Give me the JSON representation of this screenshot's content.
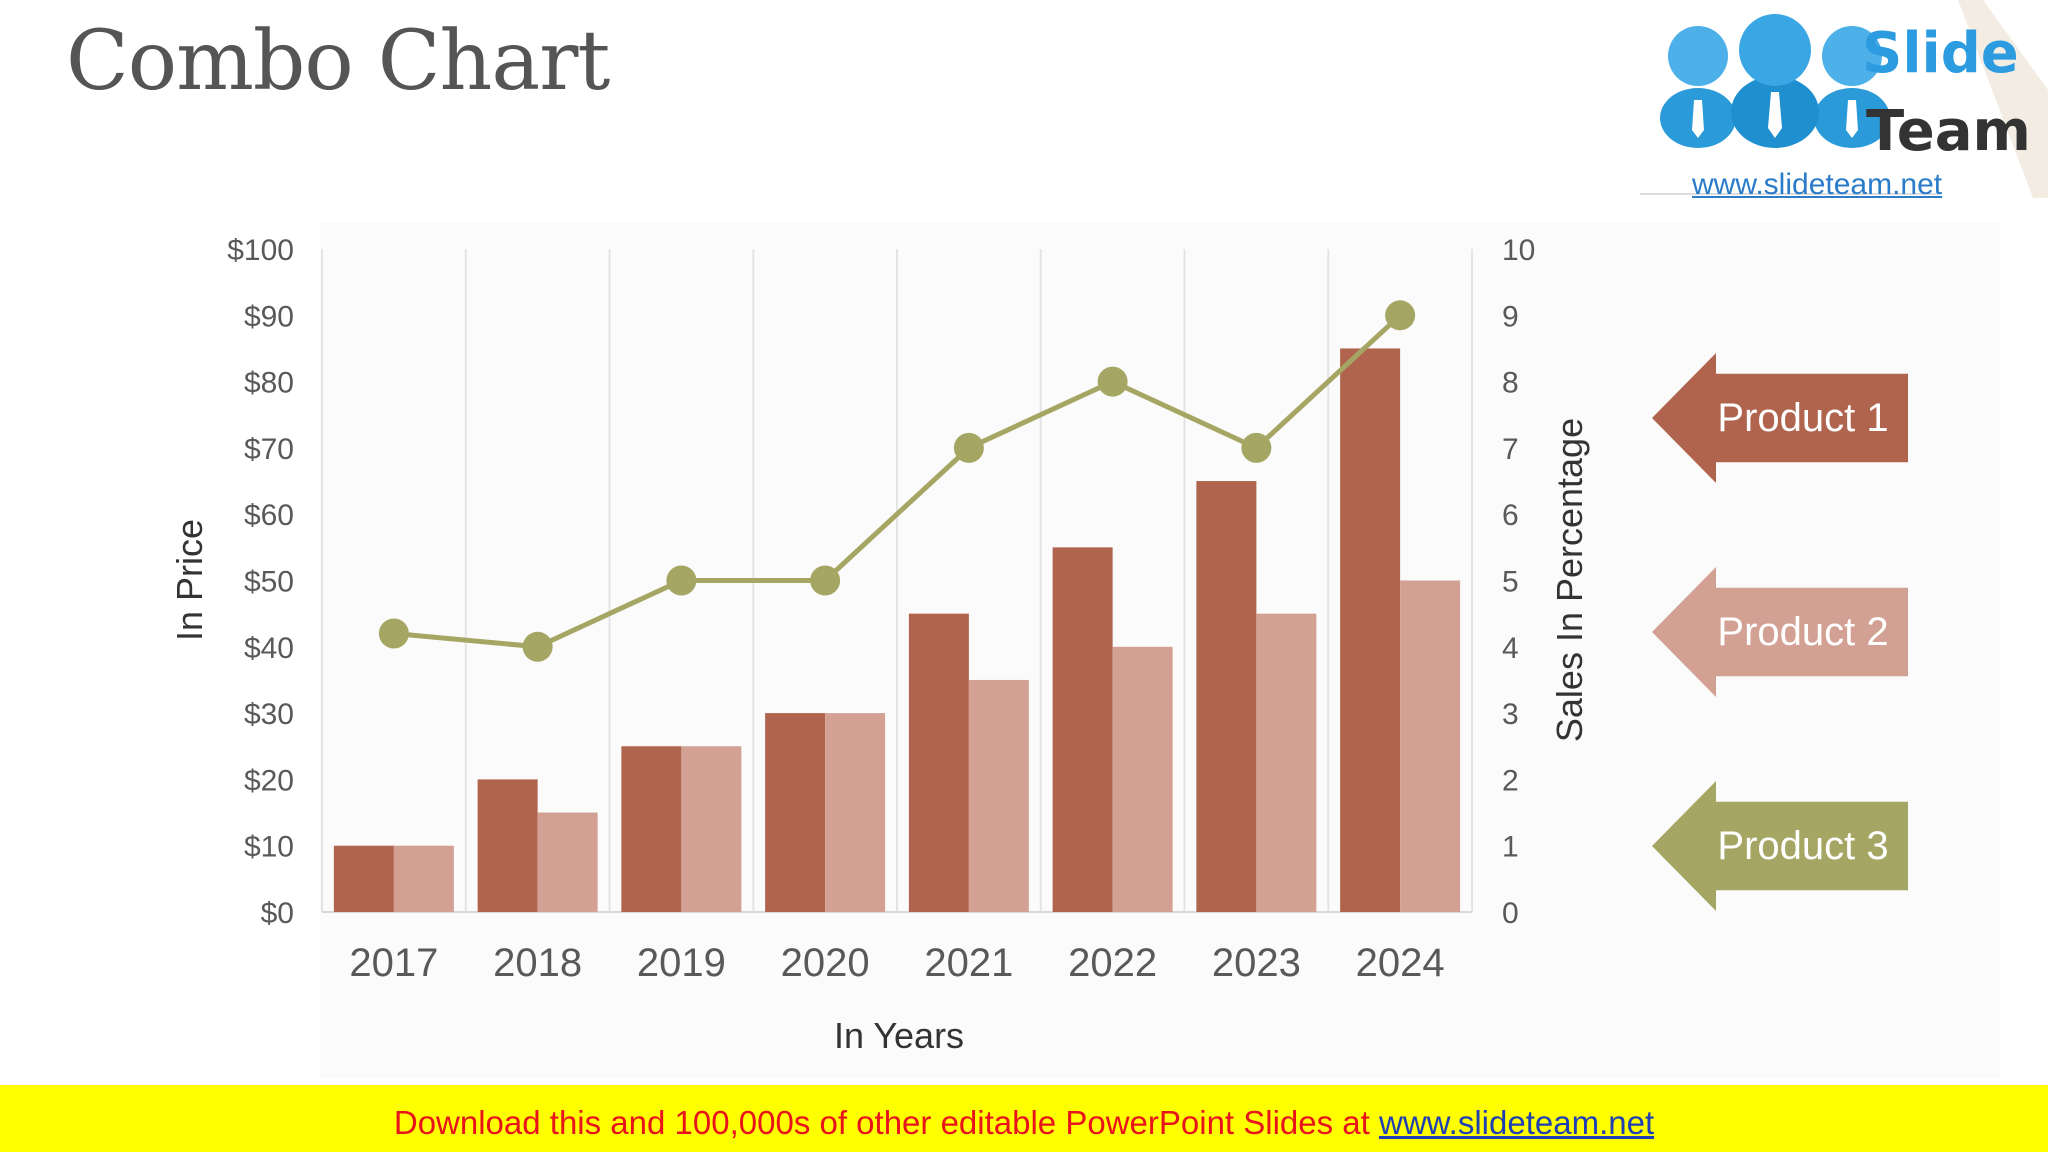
{
  "title": "Combo Chart",
  "logo": {
    "word1": "Slide",
    "word2": "Team",
    "url": "www.slideteam.net"
  },
  "legend": [
    {
      "label": "Product 1",
      "color": "#b0644e"
    },
    {
      "label": "Product 2",
      "color": "#d2a194"
    },
    {
      "label": "Product 3",
      "color": "#a6a664"
    }
  ],
  "banner": {
    "text": "Download this and 100,000s of other editable PowerPoint Slides at",
    "link": "www.slideteam.net"
  },
  "chart_data": {
    "type": "bar",
    "title": "",
    "categories": [
      "2017",
      "2018",
      "2019",
      "2020",
      "2021",
      "2022",
      "2023",
      "2024"
    ],
    "series": [
      {
        "name": "Product 1",
        "kind": "bar",
        "axis": "left",
        "color": "#b0644e",
        "values": [
          10,
          20,
          25,
          30,
          45,
          55,
          65,
          85
        ]
      },
      {
        "name": "Product 2",
        "kind": "bar",
        "axis": "left",
        "color": "#d2a194",
        "values": [
          10,
          15,
          25,
          30,
          35,
          40,
          45,
          50
        ]
      },
      {
        "name": "Product 3",
        "kind": "line",
        "axis": "right",
        "color": "#a6a664",
        "values": [
          4.2,
          4,
          5,
          5,
          7,
          8,
          7,
          9
        ]
      }
    ],
    "xlabel": "In Years",
    "ylabel": "In Price",
    "y2label": "Sales In Percentage",
    "ylim": [
      0,
      100
    ],
    "y2lim": [
      0,
      10
    ],
    "yticks": [
      "$0",
      "$10",
      "$20",
      "$30",
      "$40",
      "$50",
      "$60",
      "$70",
      "$80",
      "$90",
      "$100"
    ],
    "y2ticks": [
      "0",
      "1",
      "2",
      "3",
      "4",
      "5",
      "6",
      "7",
      "8",
      "9",
      "10"
    ],
    "grid": "vertical",
    "legend": "right"
  }
}
